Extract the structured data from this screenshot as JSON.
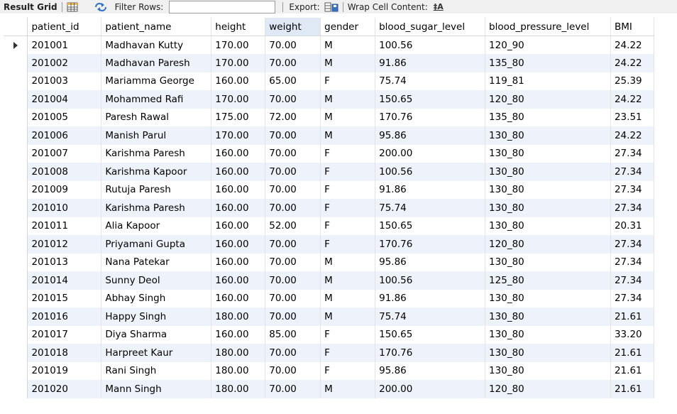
{
  "toolbar": {
    "title": "Result Grid",
    "filter_label": "Filter Rows:",
    "filter_value": "",
    "export_label": "Export:",
    "wrap_label": "Wrap Cell Content:",
    "wrap_icon": "‡A"
  },
  "grid": {
    "columns": [
      "patient_id",
      "patient_name",
      "height",
      "weight",
      "gender",
      "blood_sugar_level",
      "blood_pressure_level",
      "BMI"
    ],
    "selected_column": "weight",
    "current_row": 0,
    "rows": [
      [
        "201001",
        "Madhavan Kutty",
        "170.00",
        "70.00",
        "M",
        "100.56",
        "120_90",
        "24.22"
      ],
      [
        "201002",
        "Madhavan Paresh",
        "170.00",
        "70.00",
        "M",
        "91.86",
        "135_80",
        "24.22"
      ],
      [
        "201003",
        "Mariamma George",
        "160.00",
        "65.00",
        "F",
        "75.74",
        "119_81",
        "25.39"
      ],
      [
        "201004",
        "Mohammed Rafi",
        "170.00",
        "70.00",
        "M",
        "150.65",
        "120_80",
        "24.22"
      ],
      [
        "201005",
        "Paresh Rawal",
        "175.00",
        "72.00",
        "M",
        "170.76",
        "135_80",
        "23.51"
      ],
      [
        "201006",
        "Manish Parul",
        "170.00",
        "70.00",
        "M",
        "95.86",
        "130_80",
        "24.22"
      ],
      [
        "201007",
        "Karishma Paresh",
        "160.00",
        "70.00",
        "F",
        "200.00",
        "130_80",
        "27.34"
      ],
      [
        "201008",
        "Karishma Kapoor",
        "160.00",
        "70.00",
        "F",
        "100.56",
        "130_80",
        "27.34"
      ],
      [
        "201009",
        "Rutuja Paresh",
        "160.00",
        "70.00",
        "F",
        "91.86",
        "130_80",
        "27.34"
      ],
      [
        "201010",
        "Karishma Paresh",
        "160.00",
        "70.00",
        "F",
        "75.74",
        "130_80",
        "27.34"
      ],
      [
        "201011",
        "Alia Kapoor",
        "160.00",
        "52.00",
        "F",
        "150.65",
        "130_80",
        "20.31"
      ],
      [
        "201012",
        "Priyamani Gupta",
        "160.00",
        "70.00",
        "F",
        "170.76",
        "120_80",
        "27.34"
      ],
      [
        "201013",
        "Nana Patekar",
        "160.00",
        "70.00",
        "M",
        "95.86",
        "130_80",
        "27.34"
      ],
      [
        "201014",
        "Sunny Deol",
        "160.00",
        "70.00",
        "M",
        "100.56",
        "125_80",
        "27.34"
      ],
      [
        "201015",
        "Abhay Singh",
        "160.00",
        "70.00",
        "M",
        "91.86",
        "130_80",
        "27.34"
      ],
      [
        "201016",
        "Happy Singh",
        "180.00",
        "70.00",
        "M",
        "75.74",
        "130_80",
        "21.61"
      ],
      [
        "201017",
        "Diya Sharma",
        "160.00",
        "85.00",
        "F",
        "150.65",
        "130_80",
        "33.20"
      ],
      [
        "201018",
        "Harpreet Kaur",
        "180.00",
        "70.00",
        "F",
        "170.76",
        "130_80",
        "21.61"
      ],
      [
        "201019",
        "Rani Singh",
        "180.00",
        "70.00",
        "F",
        "95.86",
        "130_80",
        "21.61"
      ],
      [
        "201020",
        "Mann Singh",
        "180.00",
        "70.00",
        "M",
        "200.00",
        "120_80",
        "21.61"
      ]
    ]
  },
  "colors": {
    "toolbar_bg": "#f0f0f0",
    "row_alt": "#eef3fb",
    "selected_header": "#dfe9f5"
  }
}
